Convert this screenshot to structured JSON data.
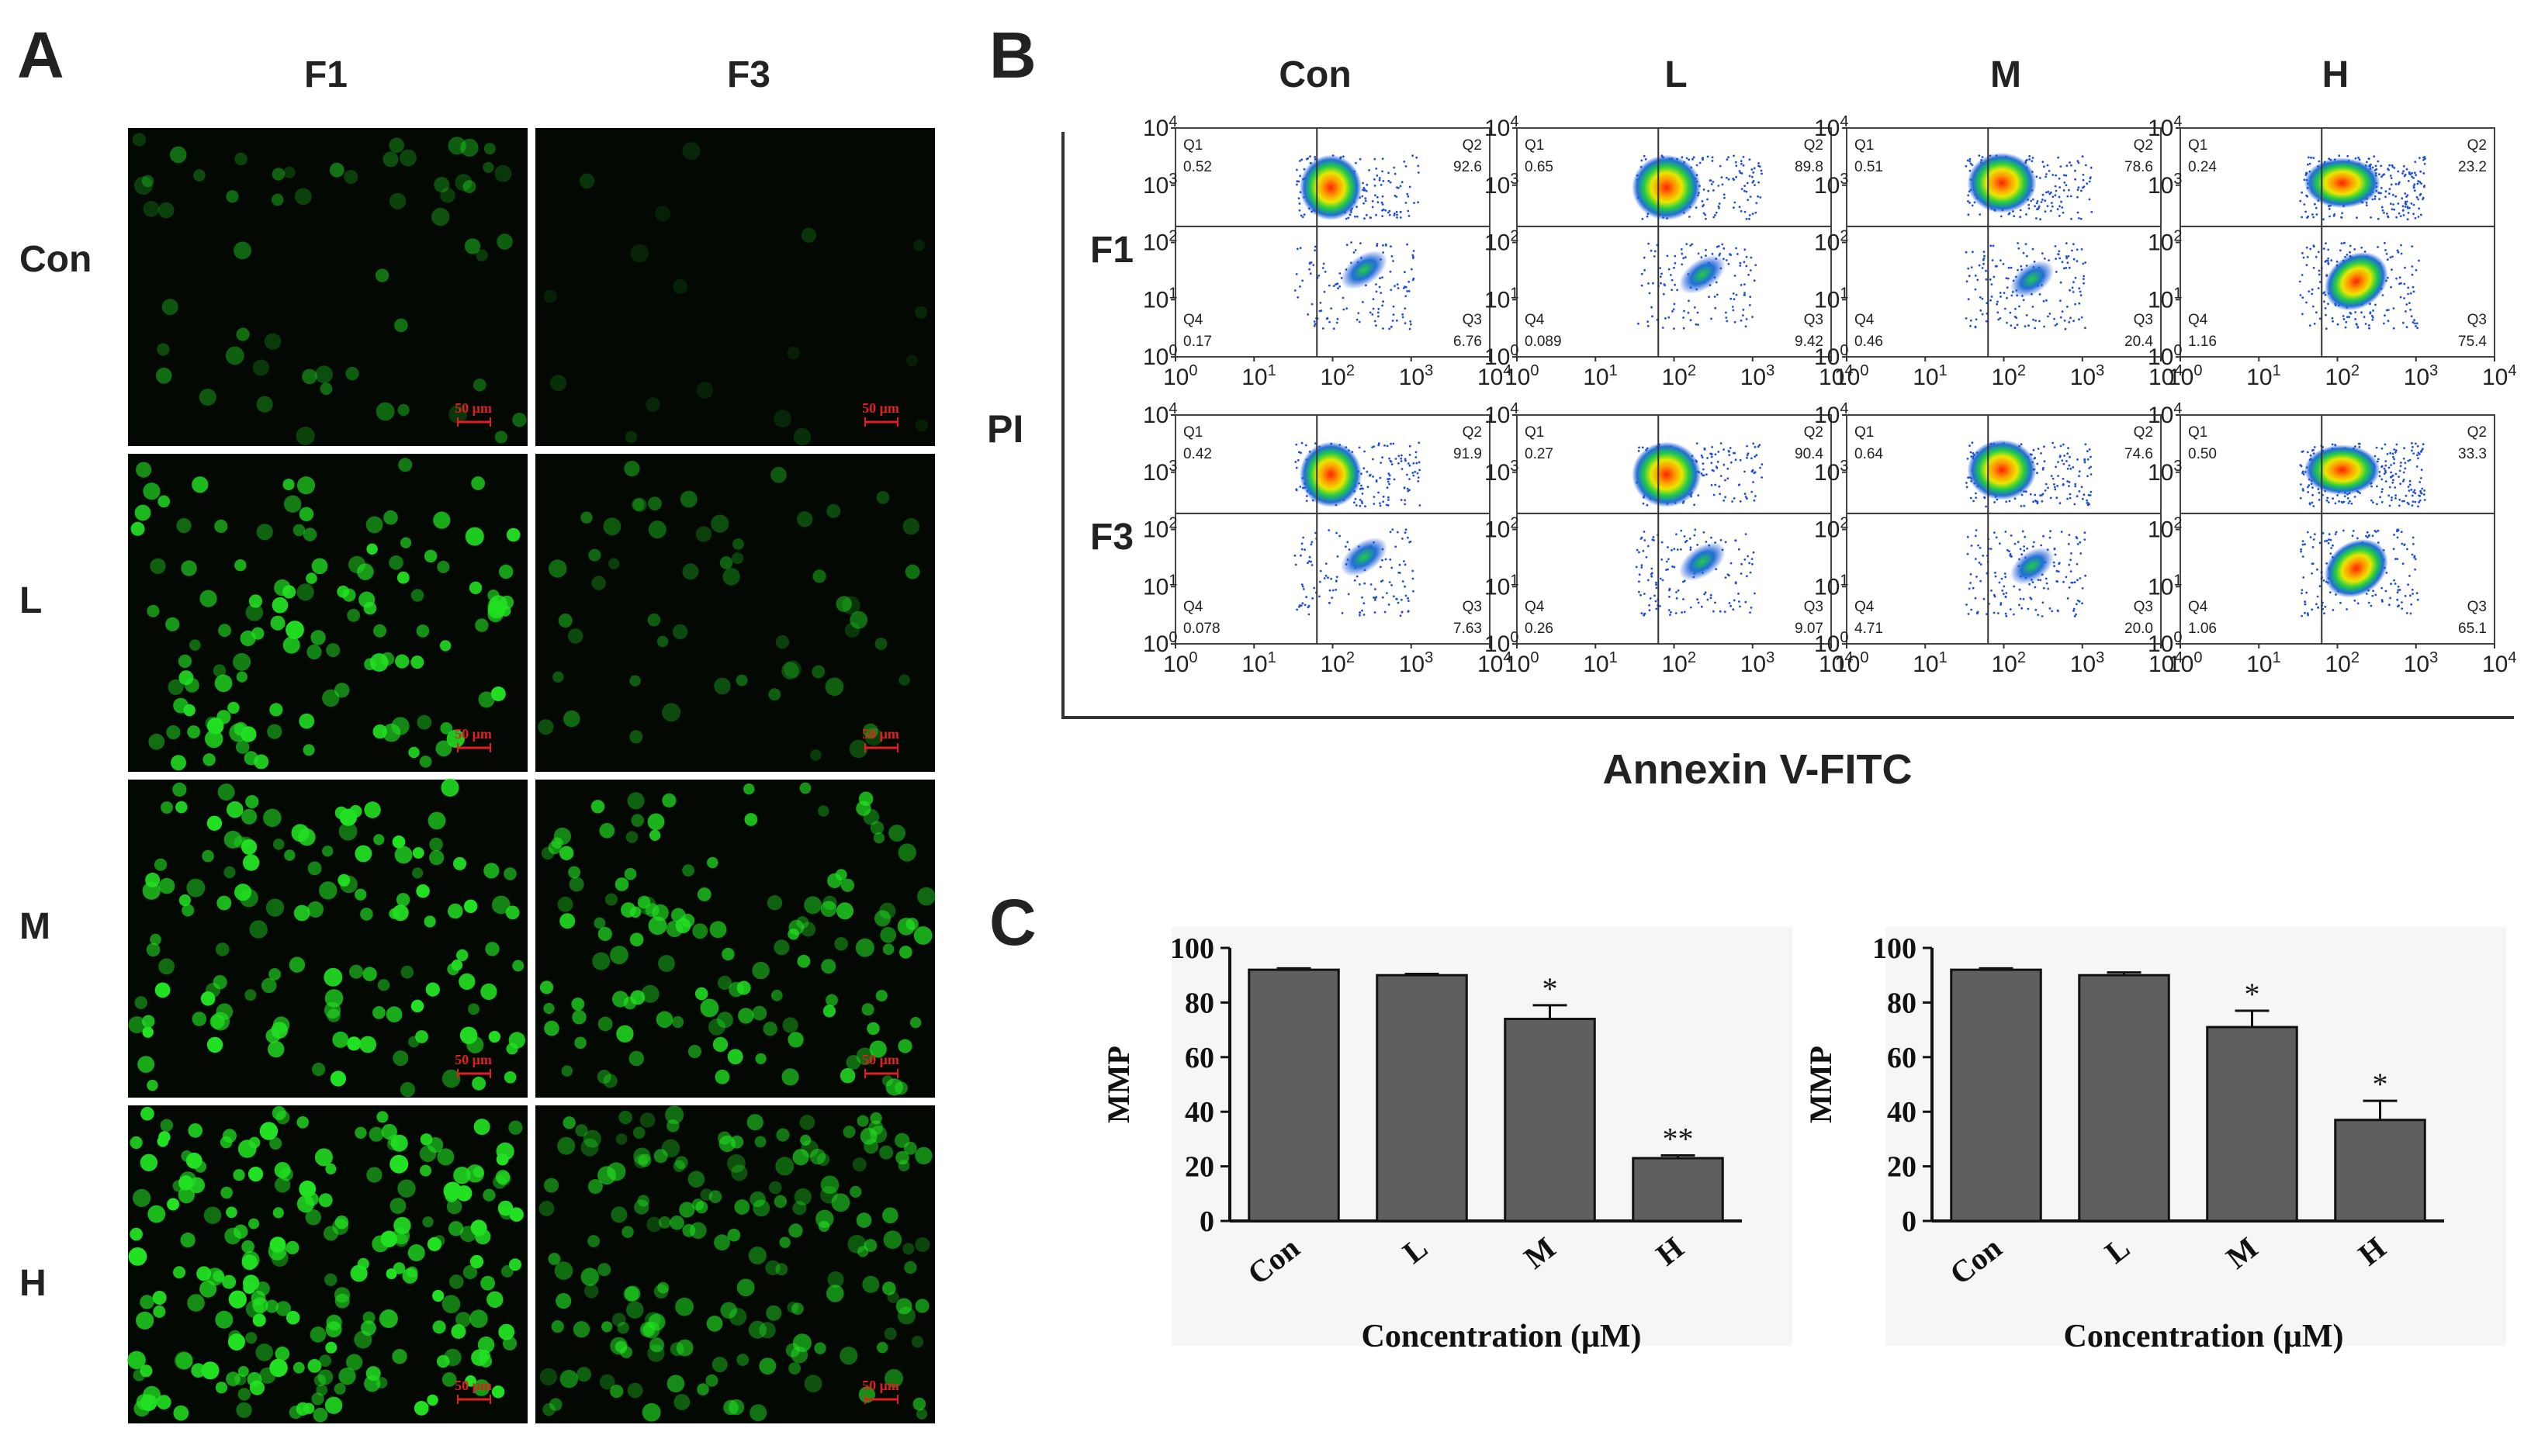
{
  "panels": {
    "A": {
      "letter": "A",
      "columns": [
        "F1",
        "F3"
      ],
      "rows": [
        "Con",
        "L",
        "M",
        "H"
      ],
      "scale_bar_label": "50 μm",
      "relative_cell_density": {
        "F1": [
          0.25,
          0.55,
          0.6,
          1.0
        ],
        "F3": [
          0.08,
          0.25,
          0.6,
          0.8
        ]
      },
      "relative_brightness": {
        "F1": [
          0.45,
          0.9,
          0.95,
          1.0
        ],
        "F3": [
          0.2,
          0.45,
          0.8,
          0.6
        ]
      },
      "colors": {
        "background": "#030803",
        "cell": "#22e022",
        "scale_bar": "#e02020"
      }
    },
    "B": {
      "letter": "B",
      "column_labels": [
        "Con",
        "L",
        "M",
        "H"
      ],
      "row_labels": [
        "F1",
        "F3"
      ],
      "y_axis_label": "PI",
      "x_axis_label": "Annexin V-FITC",
      "tick_base": "10",
      "tick_exponents": [
        "0",
        "1",
        "2",
        "3",
        "4"
      ],
      "quadrant_names": [
        "Q1",
        "Q2",
        "Q3",
        "Q4"
      ],
      "quadrant_values": {
        "F1": [
          [
            "0.52",
            "92.6",
            "6.76",
            "0.17"
          ],
          [
            "0.65",
            "89.8",
            "9.42",
            "0.089"
          ],
          [
            "0.51",
            "78.6",
            "20.4",
            "0.46"
          ],
          [
            "0.24",
            "23.2",
            "75.4",
            "1.16"
          ]
        ],
        "F3": [
          [
            "0.42",
            "91.9",
            "7.63",
            "0.078"
          ],
          [
            "0.27",
            "90.4",
            "9.07",
            "0.26"
          ],
          [
            "0.64",
            "74.6",
            "20.0",
            "4.71"
          ],
          [
            "0.50",
            "33.3",
            "65.1",
            "1.06"
          ]
        ]
      }
    },
    "C": {
      "letter": "C"
    }
  },
  "chart_data": [
    {
      "type": "bar",
      "panel": "C-left",
      "categories": [
        "Con",
        "L",
        "M",
        "H"
      ],
      "values": [
        92,
        90,
        74,
        23
      ],
      "errors": [
        0.5,
        0.5,
        5,
        1
      ],
      "significance": [
        "",
        "",
        "*",
        "**"
      ],
      "title": "",
      "xlabel": "Concentration (μM)",
      "ylabel": "MMP",
      "ylim": [
        0,
        100
      ],
      "yticks": [
        "0",
        "20",
        "40",
        "60",
        "80",
        "100"
      ],
      "bar_color": "#5f5f5f"
    },
    {
      "type": "bar",
      "panel": "C-right",
      "categories": [
        "Con",
        "L",
        "M",
        "H"
      ],
      "values": [
        92,
        90,
        71,
        37
      ],
      "errors": [
        0.5,
        1,
        6,
        7
      ],
      "significance": [
        "",
        "",
        "*",
        "*"
      ],
      "title": "",
      "xlabel": "Concentration (μM)",
      "ylabel": "MMP",
      "ylim": [
        0,
        100
      ],
      "yticks": [
        "0",
        "20",
        "40",
        "60",
        "80",
        "100"
      ],
      "bar_color": "#5f5f5f"
    }
  ],
  "flow_cytometry_data": [
    {
      "type": "scatter",
      "xlabel": "Annexin V-FITC",
      "ylabel": "PI",
      "x_scale": "log",
      "y_scale": "log",
      "xlim": [
        "10^0",
        "10^4"
      ],
      "ylim": [
        "10^0",
        "10^4"
      ],
      "quadrants": [
        "Q1",
        "Q2",
        "Q3",
        "Q4"
      ]
    }
  ]
}
